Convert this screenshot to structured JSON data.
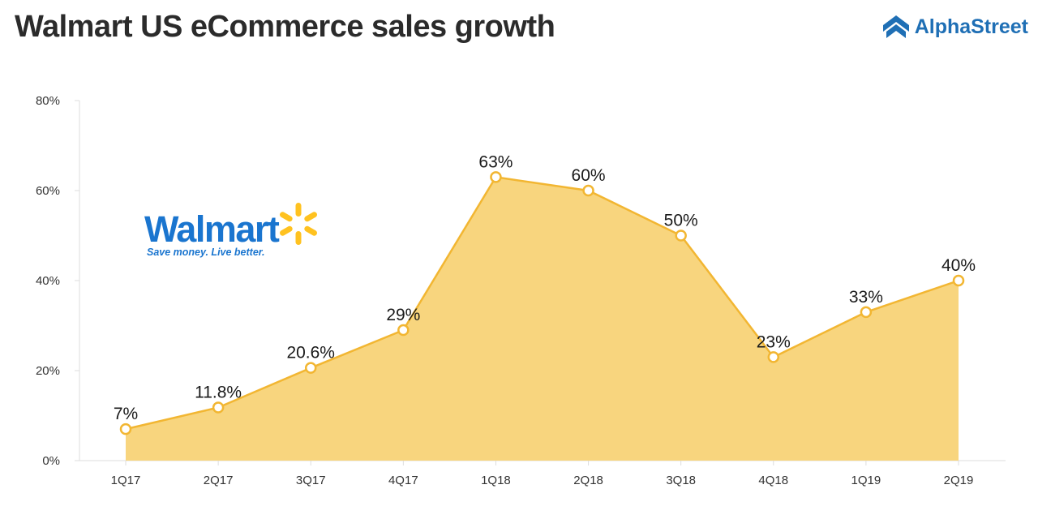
{
  "title": "Walmart US eCommerce sales growth",
  "brand": {
    "name": "AlphaStreet",
    "icon": "alphastreet-logo-icon",
    "color": "#1f6fb5"
  },
  "walmart_logo": {
    "name": "Walmart",
    "tagline": "Save money. Live better.",
    "color": "#1a75cf",
    "spark_color": "#ffc220"
  },
  "colors": {
    "line": "#f2b632",
    "fill": "#f8d57e",
    "axis": "#dddddd"
  },
  "chart_data": {
    "type": "area",
    "categories": [
      "1Q17",
      "2Q17",
      "3Q17",
      "4Q17",
      "1Q18",
      "2Q18",
      "3Q18",
      "4Q18",
      "1Q19",
      "2Q19"
    ],
    "values": [
      7,
      11.8,
      20.6,
      29,
      63,
      60,
      50,
      23,
      33,
      40
    ],
    "data_labels": [
      "7%",
      "11.8%",
      "20.6%",
      "29%",
      "63%",
      "60%",
      "50%",
      "23%",
      "33%",
      "40%"
    ],
    "y_ticks": [
      0,
      20,
      40,
      60,
      80
    ],
    "y_tick_labels": [
      "0%",
      "20%",
      "40%",
      "60%",
      "80%"
    ],
    "ylim": [
      0,
      80
    ],
    "xlabel": "",
    "ylabel": "",
    "grid": false,
    "legend": "none"
  }
}
